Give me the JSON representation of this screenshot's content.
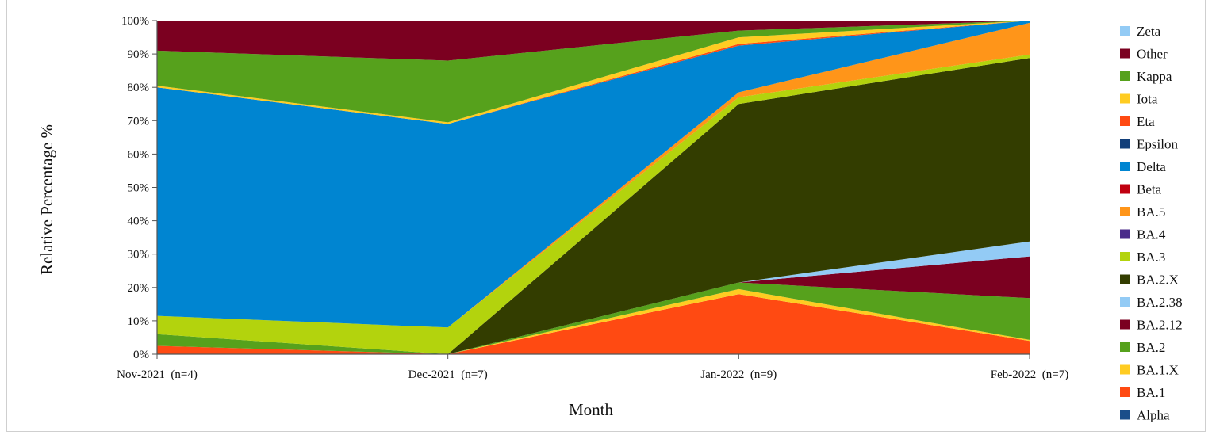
{
  "chart_data": {
    "type": "area",
    "stacked": true,
    "percent": true,
    "xlabel": "Month",
    "ylabel": "Relative Percentage %",
    "categories": [
      "Nov-2021  (n=4)",
      "Dec-2021  (n=7)",
      "Jan-2022  (n=9)",
      "Feb-2022  (n=7)"
    ],
    "y_ticks": [
      "0%",
      "10%",
      "20%",
      "30%",
      "40%",
      "50%",
      "60%",
      "70%",
      "80%",
      "90%",
      "100%"
    ],
    "ylim": [
      0,
      100
    ],
    "grid": false,
    "legend_position": "right",
    "series": [
      {
        "name": "Alpha",
        "color": "#1a4e8a",
        "values": [
          0.0,
          0.0,
          0.0,
          0.0
        ]
      },
      {
        "name": "BA.1",
        "color": "#ff4a12",
        "values": [
          2.5,
          0.0,
          18.0,
          4.0
        ]
      },
      {
        "name": "BA.1.X",
        "color": "#ffcc22",
        "values": [
          0.0,
          0.0,
          1.5,
          0.3
        ]
      },
      {
        "name": "BA.2",
        "color": "#56a11c",
        "values": [
          3.5,
          0.0,
          2.0,
          12.5
        ]
      },
      {
        "name": "BA.2.12",
        "color": "#7b0020",
        "values": [
          0.0,
          0.0,
          0.0,
          12.5
        ]
      },
      {
        "name": "BA.2.38",
        "color": "#93cbf5",
        "values": [
          0.0,
          0.0,
          0.0,
          4.5
        ]
      },
      {
        "name": "BA.2.X",
        "color": "#333d00",
        "values": [
          0.0,
          0.0,
          53.5,
          55.0
        ]
      },
      {
        "name": "BA.3",
        "color": "#b3d30d",
        "values": [
          5.5,
          8.0,
          2.0,
          1.0
        ]
      },
      {
        "name": "BA.4",
        "color": "#4a2a8a",
        "values": [
          0.0,
          0.0,
          0.0,
          0.0
        ]
      },
      {
        "name": "BA.5",
        "color": "#ff9519",
        "values": [
          0.0,
          0.0,
          1.5,
          9.5
        ]
      },
      {
        "name": "Beta",
        "color": "#c00010",
        "values": [
          0.0,
          0.0,
          0.0,
          0.0
        ]
      },
      {
        "name": "Delta",
        "color": "#0085d1",
        "values": [
          68.5,
          61.0,
          14.0,
          0.7
        ]
      },
      {
        "name": "Epsilon",
        "color": "#123f7a",
        "values": [
          0.0,
          0.0,
          0.0,
          0.0
        ]
      },
      {
        "name": "Eta",
        "color": "#ff4a12",
        "values": [
          0.0,
          0.0,
          0.5,
          0.0
        ]
      },
      {
        "name": "Iota",
        "color": "#ffcc22",
        "values": [
          0.5,
          0.5,
          2.0,
          0.0
        ]
      },
      {
        "name": "Kappa",
        "color": "#56a11c",
        "values": [
          10.5,
          18.5,
          2.0,
          0.0
        ]
      },
      {
        "name": "Other",
        "color": "#7b0020",
        "values": [
          9.0,
          12.0,
          3.0,
          0.0
        ]
      },
      {
        "name": "Zeta",
        "color": "#93cbf5",
        "values": [
          0.0,
          0.0,
          0.0,
          0.0
        ]
      }
    ]
  }
}
